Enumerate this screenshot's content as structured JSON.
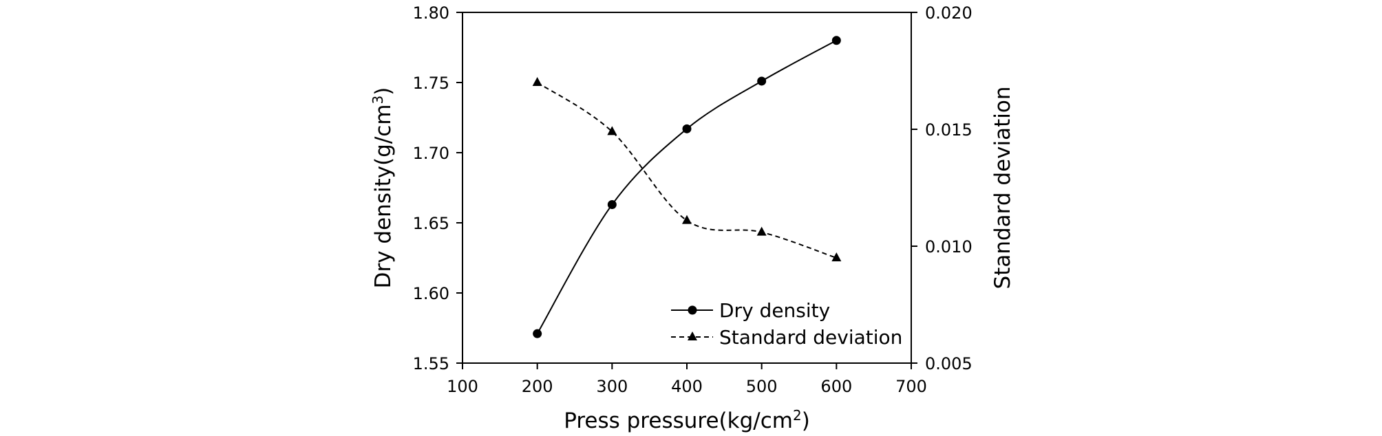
{
  "chart_data": {
    "type": "line",
    "x": [
      200,
      300,
      400,
      500,
      600
    ],
    "series": [
      {
        "name": "Dry density",
        "axis": "left",
        "values": [
          1.571,
          1.663,
          1.717,
          1.751,
          1.78
        ],
        "marker": "circle",
        "line_style": "solid",
        "smooth": true
      },
      {
        "name": "Standard deviation",
        "axis": "right",
        "values": [
          0.017,
          0.0149,
          0.0111,
          0.0106,
          0.0095
        ],
        "marker": "triangle",
        "line_style": "dashed",
        "smooth": true
      }
    ],
    "xlabel": {
      "prefix": "Press pressure(kg/cm",
      "sup": "2",
      "suffix": ")"
    },
    "ylabel_left": {
      "prefix": "Dry density(g/cm",
      "sup": "3",
      "suffix": ")"
    },
    "ylabel_right": "Standard deviation",
    "xlim": [
      100,
      700
    ],
    "x_ticks": [
      "100",
      "200",
      "300",
      "400",
      "500",
      "600",
      "700"
    ],
    "ylim_left": [
      1.55,
      1.8
    ],
    "y_ticks_left": [
      "1.55",
      "1.60",
      "1.65",
      "1.70",
      "1.75",
      "1.80"
    ],
    "ylim_right": [
      0.005,
      0.02
    ],
    "y_ticks_right": [
      "0.005",
      "0.010",
      "0.015",
      "0.020"
    ],
    "grid": false,
    "legend_position": "bottom-right",
    "line_color": "#000000"
  }
}
